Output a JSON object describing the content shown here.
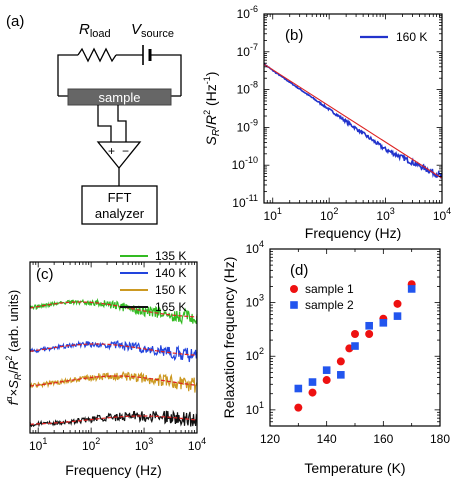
{
  "panel_a": {
    "label": "(a)",
    "r_load": "R",
    "r_load_sub": "load",
    "v_source": "V",
    "v_source_sub": "source",
    "sample_label": "sample",
    "amp_plus": "+",
    "amp_minus": "−",
    "fft_line1": "FFT",
    "fft_line2": "analyzer"
  },
  "chart_data": [
    {
      "panel": "(b)",
      "type": "line",
      "x_scale": "log",
      "y_scale": "log",
      "xlim": [
        7,
        10000
      ],
      "ylim": [
        1e-11,
        1e-06
      ],
      "xlabel": "Frequency (Hz)",
      "ylabel": "S_R/R^2 (Hz^-1)",
      "x_tick_labels": [
        "10",
        "10",
        "10",
        "10"
      ],
      "x_tick_exponents": [
        "1",
        "2",
        "3",
        "4"
      ],
      "y_tick_labels": [
        "10",
        "10",
        "10",
        "10",
        "10",
        "10"
      ],
      "y_tick_exponents": [
        "-11",
        "-10",
        "-9",
        "-8",
        "-7",
        "-6"
      ],
      "legend_position": "top-right",
      "series": [
        {
          "name": "160 K",
          "color": "#2233cc",
          "kind": "noisy-data",
          "x": [
            7,
            10,
            100,
            1000,
            10000
          ],
          "y": [
            4.8e-08,
            3.2e-08,
            3e-09,
            2.6e-10,
            5e-11
          ]
        },
        {
          "color": "#dd2222",
          "kind": "fit",
          "x": [
            7,
            10000
          ],
          "y": [
            4.7e-08,
            4.5e-11
          ]
        }
      ]
    },
    {
      "panel": "(c)",
      "type": "line",
      "x_scale": "log",
      "xlim": [
        7,
        10000
      ],
      "xlabel": "Frequency (Hz)",
      "ylabel": "f^α×S_R/R^2 (arb. units)",
      "x_tick_labels": [
        "10",
        "10",
        "10",
        "10"
      ],
      "x_tick_exponents": [
        "1",
        "2",
        "3",
        "4"
      ],
      "legend_position": "top-right",
      "series": [
        {
          "name": "135 K",
          "color": "#33bb22",
          "peak_frequency": 60
        },
        {
          "name": "140 K",
          "color": "#2244dd",
          "peak_frequency": 120
        },
        {
          "name": "150 K",
          "color": "#cc9922",
          "peak_frequency": 300
        },
        {
          "name": "165 K",
          "color": "#111111",
          "peak_frequency": 900
        }
      ],
      "fit_color": "#dd2222"
    },
    {
      "panel": "(d)",
      "type": "scatter",
      "y_scale": "log",
      "xlim": [
        120,
        180
      ],
      "ylim": [
        5,
        10000
      ],
      "xlabel": "Temperature (K)",
      "ylabel": "Relaxation frequency (Hz)",
      "x_ticks": [
        120,
        140,
        160,
        180
      ],
      "y_tick_labels": [
        "10",
        "10",
        "10",
        "10"
      ],
      "y_tick_exponents": [
        "1",
        "2",
        "3",
        "4"
      ],
      "legend_position": "top-left",
      "series": [
        {
          "name": "sample 1",
          "color": "#ee1111",
          "marker": "circle",
          "x": [
            130,
            135,
            140,
            145,
            148,
            150,
            155,
            160,
            165,
            170
          ],
          "y": [
            11,
            21,
            36,
            80,
            140,
            260,
            260,
            500,
            950,
            2200
          ]
        },
        {
          "name": "sample 2",
          "color": "#2255ee",
          "marker": "square",
          "x": [
            130,
            135,
            140,
            145,
            150,
            155,
            160,
            165,
            170
          ],
          "y": [
            25,
            33,
            55,
            45,
            155,
            370,
            420,
            560,
            1800
          ]
        }
      ]
    }
  ]
}
